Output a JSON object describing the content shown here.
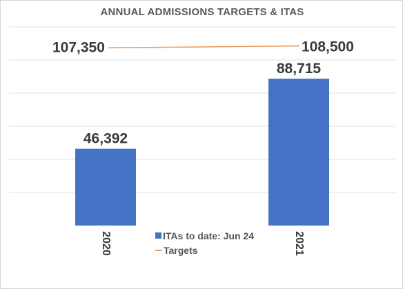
{
  "colors": {
    "bar": "#4472c4",
    "target_line": "#ed9a5a",
    "text_dark": "#3a3a3a",
    "title": "#5a5a5a",
    "gridline": "#e2e2e2"
  },
  "chart_data": {
    "type": "bar",
    "title": "ANNUAL ADMISSIONS TARGETS & ITAS",
    "categories": [
      "2020",
      "2021"
    ],
    "ylim": [
      0,
      120000
    ],
    "grid": true,
    "legend_position": "bottom-center",
    "series": [
      {
        "name": "ITAs to date: Jun 24",
        "type": "bar",
        "values": [
          46392,
          88715
        ],
        "labels": [
          "46,392",
          "88,715"
        ]
      },
      {
        "name": "Targets",
        "type": "line",
        "values": [
          107350,
          108500
        ],
        "labels": [
          "107,350",
          "108,500"
        ]
      }
    ]
  }
}
